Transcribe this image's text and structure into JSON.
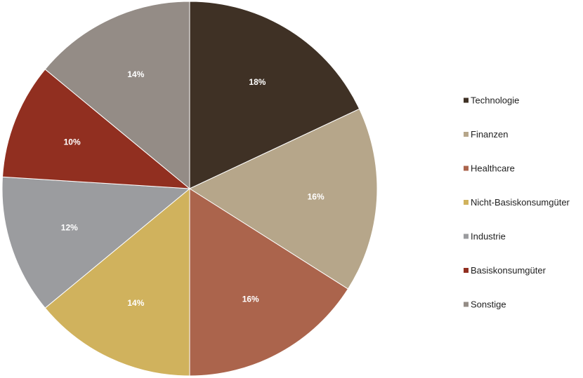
{
  "chart_data": {
    "type": "pie",
    "title": "",
    "legend_position": "right",
    "start_angle_deg": 0,
    "direction": "clockwise",
    "slices": [
      {
        "label": "Technologie",
        "value": 18,
        "value_label": "18%",
        "color": "#3f3125"
      },
      {
        "label": "Finanzen",
        "value": 16,
        "value_label": "16%",
        "color": "#b6a68a"
      },
      {
        "label": "Healthcare",
        "value": 16,
        "value_label": "16%",
        "color": "#ab644c"
      },
      {
        "label": "Nicht-Basiskonsumgüter",
        "value": 14,
        "value_label": "14%",
        "color": "#d0b25d"
      },
      {
        "label": "Industrie",
        "value": 12,
        "value_label": "12%",
        "color": "#9b9c9f"
      },
      {
        "label": "Basiskonsumgüter",
        "value": 10,
        "value_label": "10%",
        "color": "#912f20"
      },
      {
        "label": "Sonstige",
        "value": 14,
        "value_label": "14%",
        "color": "#948c86"
      }
    ]
  }
}
